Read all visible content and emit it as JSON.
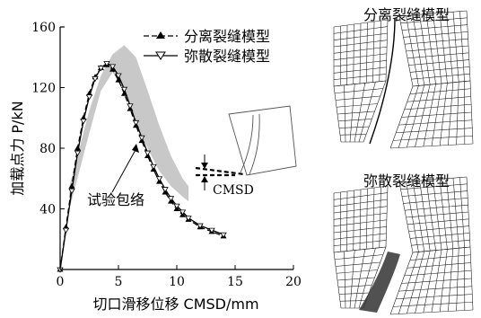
{
  "chart_data": {
    "type": "line",
    "xlabel": "切口滑移位移 CMSD/mm",
    "ylabel": "加载点力 P/kN",
    "xlim": [
      0,
      20
    ],
    "ylim": [
      0,
      160
    ],
    "xticks": [
      0,
      5,
      10,
      15,
      20
    ],
    "yticks": [
      40,
      80,
      120,
      160
    ],
    "legend_position": "top-right",
    "series": [
      {
        "name": "分离裂缝模型",
        "marker": "filled-triangle",
        "x": [
          0,
          0.5,
          1.0,
          1.5,
          2.0,
          2.5,
          3.0,
          3.5,
          4.0,
          4.5,
          5.0,
          5.5,
          6.0,
          6.5,
          7.0,
          7.5,
          8.0,
          8.5,
          9.0,
          9.5,
          10.0,
          10.5,
          11.0,
          12.0,
          13.0,
          14.0
        ],
        "y": [
          0,
          28,
          55,
          80,
          100,
          116,
          127,
          133,
          135,
          132,
          125,
          116,
          106,
          95,
          85,
          75,
          66,
          58,
          51,
          45,
          40,
          36,
          33,
          28,
          25,
          22
        ]
      },
      {
        "name": "弥散裂缝模型",
        "marker": "open-triangle",
        "x": [
          0,
          0.5,
          1.0,
          1.5,
          2.0,
          2.5,
          3.0,
          3.5,
          4.0,
          4.5,
          5.0,
          5.5,
          6.0,
          6.5,
          7.0,
          7.5,
          8.0,
          8.5,
          9.0,
          9.5,
          10.0,
          10.5,
          11.0,
          12.0,
          13.0,
          14.0
        ],
        "y": [
          0,
          26,
          52,
          77,
          98,
          114,
          126,
          133,
          136,
          134,
          128,
          119,
          108,
          97,
          87,
          77,
          68,
          60,
          53,
          47,
          42,
          38,
          34,
          29,
          26,
          23
        ]
      }
    ],
    "envelope": {
      "label": "试验包络",
      "x": [
        0.8,
        2.5,
        3.5,
        4.5,
        5.5,
        6.5,
        7.5,
        8.5,
        9.5,
        10.5,
        11.0
      ],
      "upper": [
        55,
        105,
        128,
        142,
        148,
        140,
        118,
        95,
        75,
        60,
        55
      ],
      "lower": [
        40,
        90,
        118,
        130,
        118,
        95,
        80,
        65,
        55,
        48,
        45
      ]
    },
    "inset_label": "CMSD"
  },
  "mesh_panels": [
    {
      "title": "分离裂缝模型"
    },
    {
      "title": "弥散裂缝模型"
    }
  ]
}
